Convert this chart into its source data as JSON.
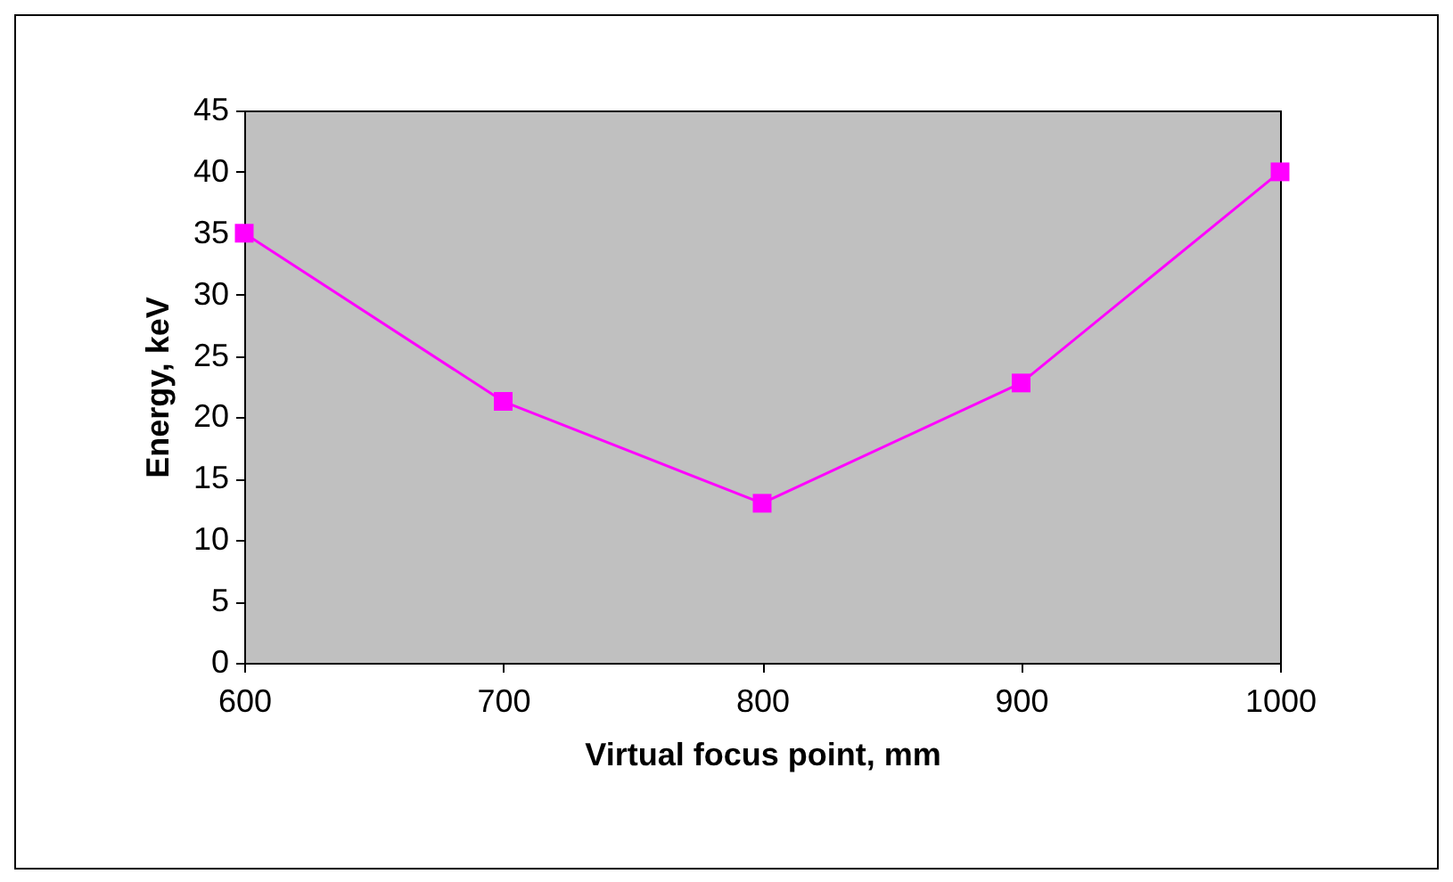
{
  "chart_data": {
    "type": "line",
    "xlabel": "Virtual focus point, mm",
    "ylabel": "Energy, keV",
    "x": [
      600,
      700,
      800,
      900,
      1000
    ],
    "series": [
      {
        "color": "#ff00ff",
        "values": [
          35,
          21.3,
          13,
          22.8,
          40
        ]
      }
    ],
    "xlim": [
      600,
      1000
    ],
    "xticks": [
      600,
      700,
      800,
      900,
      1000
    ],
    "ylim": [
      0,
      45
    ],
    "yticks": [
      0,
      5,
      10,
      15,
      20,
      25,
      30,
      35,
      40,
      45
    ],
    "grid": false,
    "marker": "square",
    "line_style": "solid"
  }
}
